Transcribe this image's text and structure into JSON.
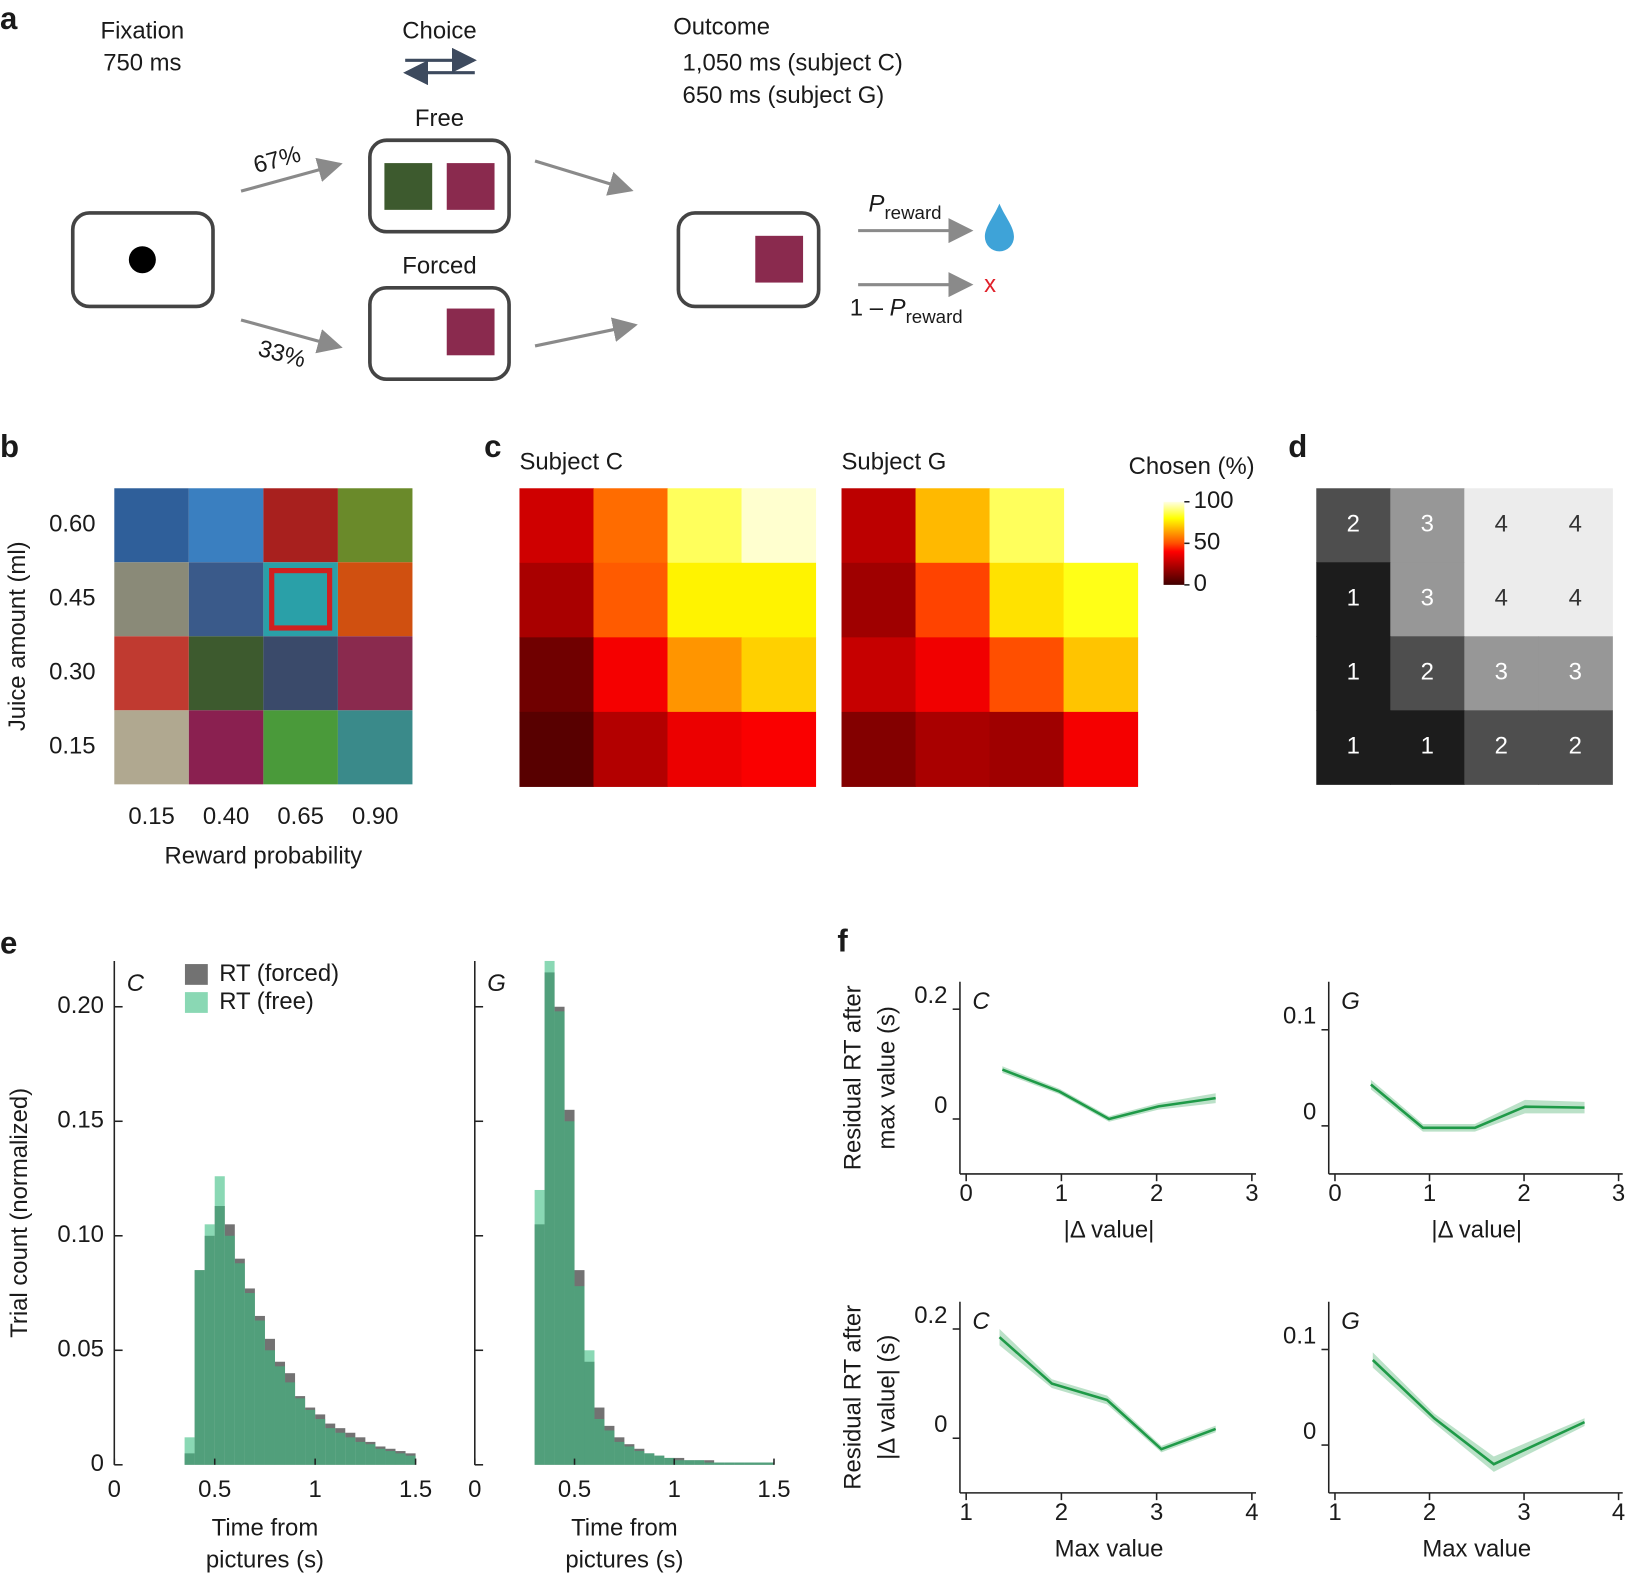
{
  "panel_labels": [
    "a",
    "b",
    "c",
    "d",
    "e",
    "f"
  ],
  "task_diagram": {
    "fixation": "Fixation",
    "fixation_time": "750 ms",
    "choice": "Choice",
    "free": "Free",
    "forced": "Forced",
    "outcome": "Outcome",
    "outcome_c": "1,050 ms (subject C)",
    "outcome_g": "650 ms (subject G)",
    "p_free": "67%",
    "p_forced": "33%",
    "p_symbol": "P",
    "p_subscript": "reward",
    "no_reward_prefix": "1 – ",
    "no_reward_mark": "x"
  },
  "chart_data": [
    {
      "type": "image-grid",
      "xlabel": "Reward probability",
      "ylabel": "Juice amount (ml)",
      "x_categories": [
        "0.15",
        "0.40",
        "0.65",
        "0.90"
      ],
      "y_categories": [
        "0.60",
        "0.45",
        "0.30",
        "0.15"
      ]
    },
    {
      "type": "heatmap",
      "title": "Subject C",
      "colormap": "hot",
      "vlim": [
        0,
        100
      ],
      "values": [
        [
          30,
          55,
          88,
          98
        ],
        [
          22,
          52,
          78,
          78
        ],
        [
          10,
          38,
          62,
          72
        ],
        [
          5,
          24,
          36,
          39
        ]
      ]
    },
    {
      "type": "heatmap",
      "title": "Subject G",
      "colormap": "hot",
      "vlim": [
        0,
        100
      ],
      "values": [
        [
          26,
          68,
          88,
          null
        ],
        [
          20,
          48,
          75,
          82
        ],
        [
          28,
          37,
          50,
          70
        ],
        [
          14,
          22,
          20,
          38
        ]
      ]
    },
    {
      "type": "colorbar",
      "title": "Chosen (%)",
      "colormap": "hot",
      "ylim": [
        0,
        100
      ],
      "yticks": [
        0,
        50,
        100
      ]
    },
    {
      "type": "heatmap",
      "colormap": "gray",
      "vlim": [
        1,
        4
      ],
      "show_values": true,
      "values": [
        [
          2,
          3,
          4,
          4
        ],
        [
          1,
          3,
          4,
          4
        ],
        [
          1,
          2,
          3,
          3
        ],
        [
          1,
          1,
          2,
          2
        ]
      ]
    },
    {
      "type": "histogram",
      "title": "C",
      "ylabel": "Trial count (normalized)",
      "xlabel": [
        "Time from",
        "pictures (s)"
      ],
      "xlim": [
        0,
        1.5
      ],
      "xticks": [
        0,
        0.5,
        1,
        1.5
      ],
      "ylim": [
        0,
        0.22
      ],
      "yticks": [
        0,
        0.05,
        {
          "value": 0.1,
          "label": "0.10"
        },
        0.15,
        {
          "value": 0.2,
          "label": "0.20"
        }
      ],
      "ytick_labels": true,
      "legend": "top-left",
      "bins": [
        0,
        0.05,
        0.1,
        0.15,
        0.2,
        0.25,
        0.3,
        0.35,
        0.4,
        0.45,
        0.5,
        0.55,
        0.6,
        0.65,
        0.7,
        0.75,
        0.8,
        0.85,
        0.9,
        0.95,
        1,
        1.05,
        1.1,
        1.15,
        1.2,
        1.25,
        1.3,
        1.35,
        1.4,
        1.45,
        1.5
      ],
      "series": [
        {
          "name": "RT (forced)",
          "color": "#727272",
          "values": [
            0,
            0,
            0,
            0,
            0,
            0,
            0,
            0.005,
            0.085,
            0.1,
            0.113,
            0.105,
            0.09,
            0.077,
            0.065,
            0.055,
            0.045,
            0.04,
            0.03,
            0.025,
            0.022,
            0.018,
            0.016,
            0.014,
            0.012,
            0.01,
            0.008,
            0.007,
            0.006,
            0.005
          ]
        },
        {
          "name": "RT (free)",
          "color": "#3cbe82",
          "values": [
            0,
            0,
            0,
            0,
            0,
            0,
            0,
            0.012,
            0.085,
            0.105,
            0.126,
            0.1,
            0.088,
            0.075,
            0.063,
            0.05,
            0.043,
            0.036,
            0.029,
            0.024,
            0.02,
            0.016,
            0.014,
            0.012,
            0.01,
            0.009,
            0.007,
            0.006,
            0.005,
            0.004
          ]
        }
      ]
    },
    {
      "type": "histogram",
      "title": "G",
      "xlabel": [
        "Time from",
        "pictures (s)"
      ],
      "xlim": [
        0,
        1.5
      ],
      "xticks": [
        0,
        0.5,
        1,
        1.5
      ],
      "ylim": [
        0,
        0.22
      ],
      "yticks": [
        0,
        0.05,
        0.1,
        0.15,
        0.2
      ],
      "ytick_labels": false,
      "bins": [
        0,
        0.05,
        0.1,
        0.15,
        0.2,
        0.25,
        0.3,
        0.35,
        0.4,
        0.45,
        0.5,
        0.55,
        0.6,
        0.65,
        0.7,
        0.75,
        0.8,
        0.85,
        0.9,
        0.95,
        1,
        1.05,
        1.1,
        1.15,
        1.2,
        1.25,
        1.3,
        1.35,
        1.4,
        1.45,
        1.5
      ],
      "series": [
        {
          "color": "#727272",
          "values": [
            0,
            0,
            0,
            0,
            0,
            0,
            0.105,
            0.215,
            0.2,
            0.155,
            0.085,
            0.045,
            0.025,
            0.017,
            0.012,
            0.009,
            0.007,
            0.005,
            0.004,
            0.003,
            0.003,
            0.002,
            0.002,
            0.002,
            0.001,
            0.001,
            0.001,
            0.001,
            0.001,
            0.001
          ]
        },
        {
          "color": "#3cbe82",
          "values": [
            0,
            0,
            0,
            0,
            0,
            0,
            0.12,
            0.22,
            0.198,
            0.15,
            0.078,
            0.05,
            0.02,
            0.015,
            0.01,
            0.008,
            0.006,
            0.005,
            0.004,
            0.003,
            0.002,
            0.002,
            0.002,
            0.001,
            0.001,
            0.001,
            0.001,
            0.001,
            0.001,
            0.001
          ]
        }
      ]
    },
    {
      "type": "line",
      "title": "C",
      "xlabel": "|Δ value|",
      "ylabel": [
        "Residual RT after",
        "max value (s)"
      ],
      "xlim": [
        0,
        3
      ],
      "xticks": [
        0,
        1,
        2,
        3
      ],
      "ylim": [
        -0.1,
        0.25
      ],
      "yticks": [
        0,
        0.2
      ],
      "x": [
        0.38,
        0.98,
        1.5,
        2.02,
        2.62
      ],
      "series": [
        {
          "color": "#1f9a48",
          "values": [
            0.09,
            0.05,
            0,
            0.023,
            0.038
          ],
          "error": [
            0.006,
            0.005,
            0.005,
            0.006,
            0.009
          ]
        }
      ]
    },
    {
      "type": "line",
      "title": "G",
      "xlabel": "|Δ value|",
      "xlim": [
        0,
        3
      ],
      "xticks": [
        0,
        1,
        2,
        3
      ],
      "ylim": [
        -0.05,
        0.15
      ],
      "yticks": [
        0,
        0.1
      ],
      "x": [
        0.38,
        0.93,
        1.48,
        2.01,
        2.64
      ],
      "series": [
        {
          "color": "#1f9a48",
          "values": [
            0.043,
            -0.002,
            -0.002,
            0.02,
            0.019
          ],
          "error": [
            0.005,
            0.004,
            0.004,
            0.007,
            0.006
          ]
        }
      ]
    },
    {
      "type": "line",
      "title": "C",
      "xlabel": "Max value",
      "ylabel": [
        "Residual RT after",
        "|Δ value| (s)"
      ],
      "xlim": [
        1,
        4
      ],
      "xticks": [
        1,
        2,
        3,
        4
      ],
      "ylim": [
        -0.1,
        0.25
      ],
      "yticks": [
        0,
        0.2
      ],
      "x": [
        1.35,
        1.9,
        2.48,
        3.05,
        3.62
      ],
      "series": [
        {
          "color": "#1f9a48",
          "values": [
            0.185,
            0.1,
            0.07,
            -0.02,
            0.017
          ],
          "error": [
            0.015,
            0.008,
            0.008,
            0.006,
            0.006
          ]
        }
      ]
    },
    {
      "type": "line",
      "title": "G",
      "xlabel": "Max value",
      "xlim": [
        1,
        4
      ],
      "xticks": [
        1,
        2,
        3,
        4
      ],
      "ylim": [
        -0.05,
        0.15
      ],
      "yticks": [
        0,
        0.1
      ],
      "x": [
        1.4,
        2.05,
        2.68,
        3.64
      ],
      "series": [
        {
          "color": "#1f9a48",
          "values": [
            0.089,
            0.028,
            -0.02,
            0.024
          ],
          "error": [
            0.008,
            0.005,
            0.008,
            0.004
          ]
        }
      ]
    }
  ]
}
